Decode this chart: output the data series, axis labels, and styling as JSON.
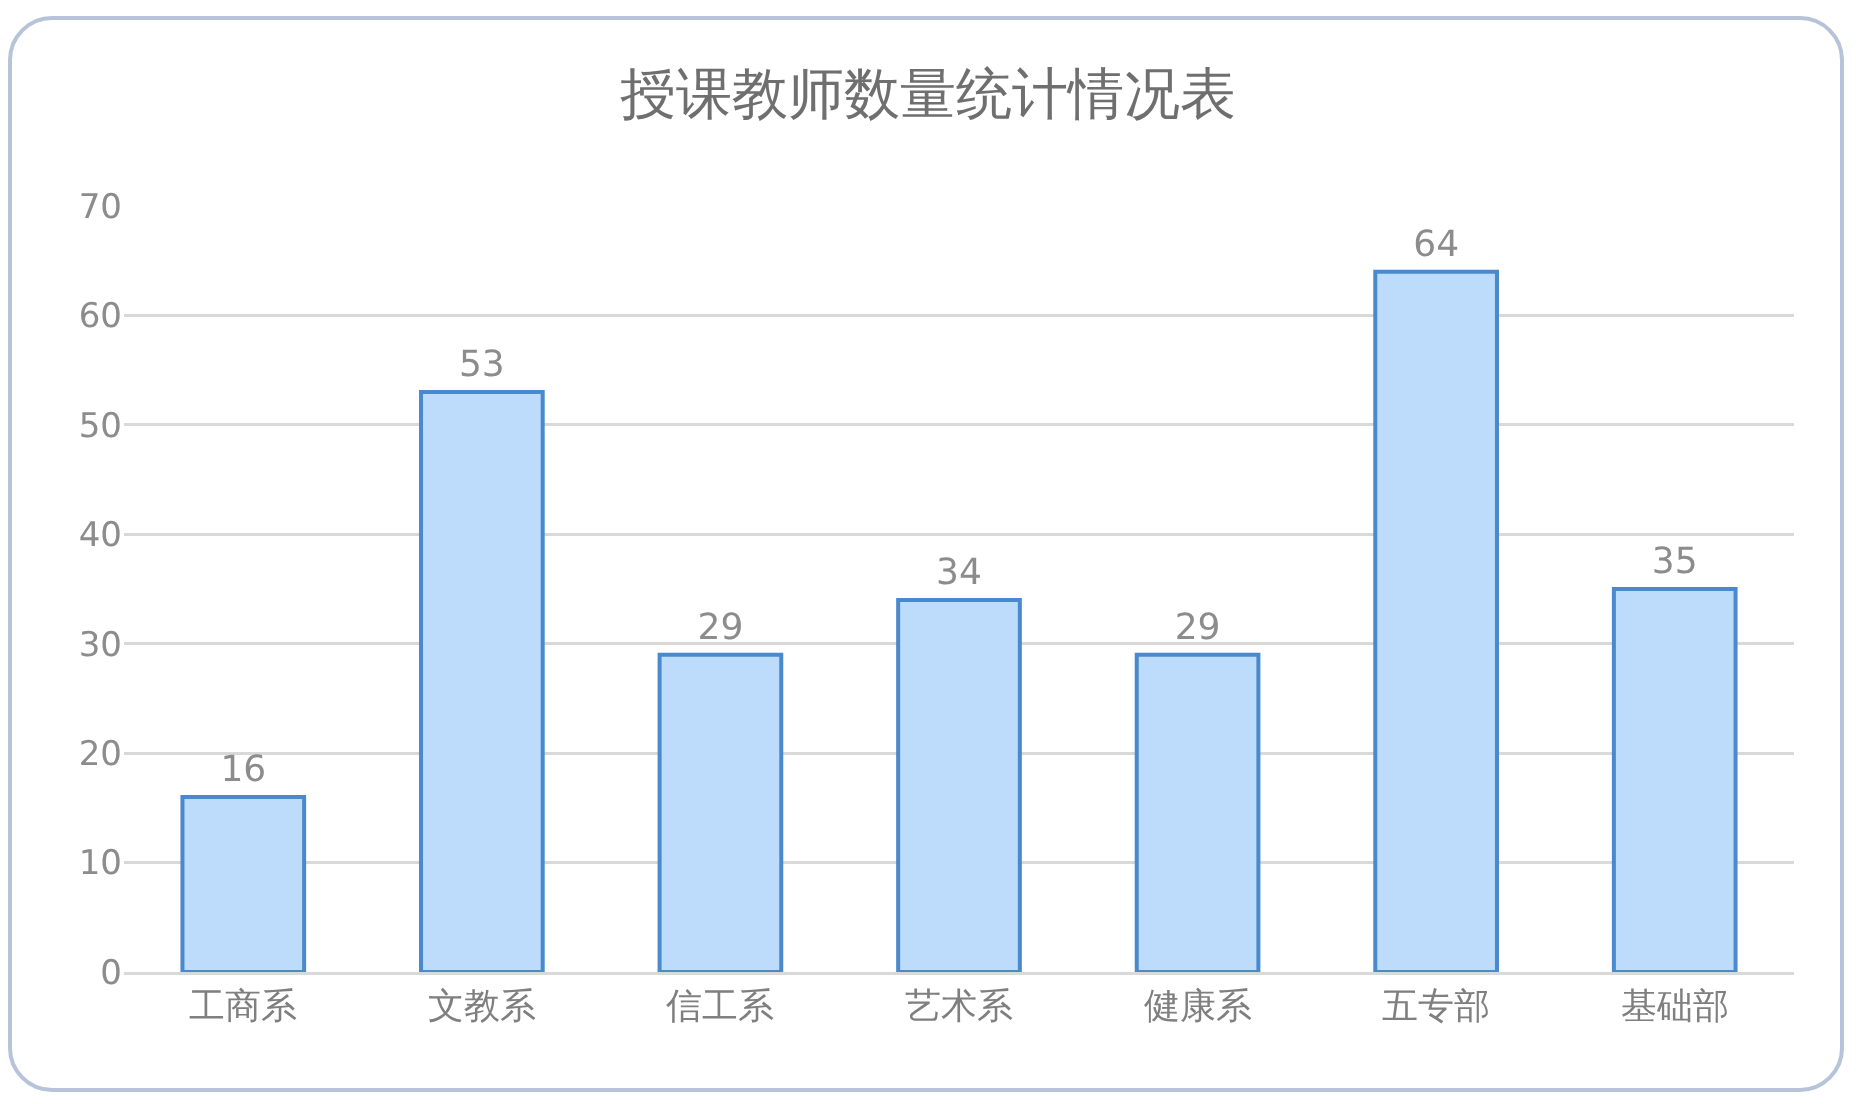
{
  "chart_data": {
    "type": "bar",
    "title": "授课教师数量统计情况表",
    "categories": [
      "工商系",
      "文教系",
      "信工系",
      "艺术系",
      "健康系",
      "五专部",
      "基础部"
    ],
    "values": [
      16,
      53,
      29,
      34,
      29,
      64,
      35
    ],
    "color": "#bddcfb",
    "ylim": [
      0,
      70
    ],
    "yticks": [
      0,
      10,
      20,
      30,
      40,
      50,
      60,
      70
    ],
    "grid": "y",
    "data_labels": true
  }
}
